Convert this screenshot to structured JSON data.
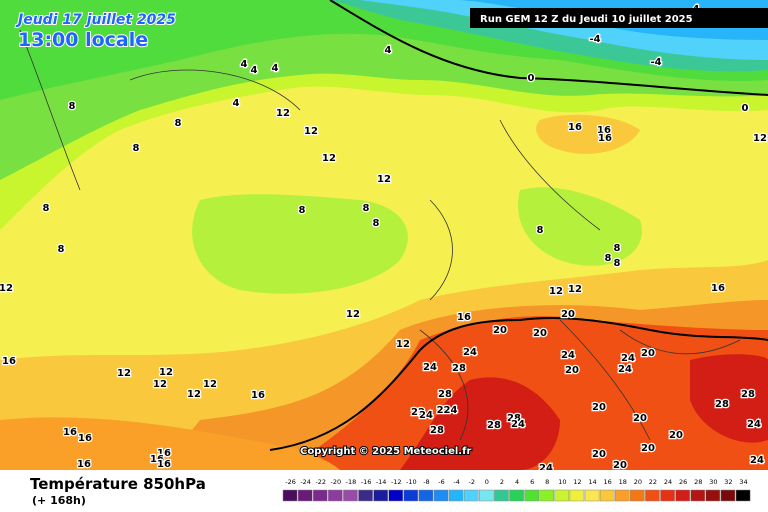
{
  "header": {
    "date": "Jeudi 17 juillet 2025",
    "time": "13:00 locale",
    "run": "Run GEM 12 Z du Jeudi 10 juillet 2025",
    "copyright": "Copyright © 2025 Meteociel.fr"
  },
  "footer": {
    "title": "Température 850hPa",
    "lead": "(+ 168h)"
  },
  "contour_labels": [
    "0",
    "-4",
    "-4",
    "4",
    "0",
    "4",
    "4",
    "4",
    "4",
    "4",
    "8",
    "8",
    "8",
    "12",
    "12",
    "12",
    "12",
    "16",
    "16",
    "16",
    "12",
    "8",
    "8",
    "8",
    "8",
    "8",
    "8",
    "8",
    "8",
    "8",
    "12",
    "12",
    "12",
    "16",
    "12",
    "16",
    "20",
    "20",
    "20",
    "12",
    "24",
    "24",
    "20",
    "24",
    "20",
    "24",
    "28",
    "24",
    "16",
    "12",
    "12",
    "12",
    "12",
    "12",
    "16",
    "28",
    "22",
    "24",
    "224",
    "28",
    "24",
    "20",
    "20",
    "28",
    "28",
    "24",
    "28",
    "28",
    "20",
    "20",
    "20",
    "20",
    "24",
    "24",
    "16",
    "16",
    "16",
    "16",
    "16",
    "16"
  ],
  "scale": {
    "labels": [
      -26,
      -24,
      -22,
      -20,
      -18,
      -16,
      -14,
      -12,
      -10,
      -8,
      -6,
      -4,
      -2,
      0,
      2,
      4,
      6,
      8,
      10,
      12,
      14,
      16,
      18,
      20,
      22,
      24,
      26,
      28,
      30,
      32,
      34
    ],
    "colors": [
      "#4b0d5c",
      "#6a1b7a",
      "#7a2a8c",
      "#8c3c9c",
      "#9a4aa8",
      "#3a2a8a",
      "#1c1c9c",
      "#0000c8",
      "#0a3cd8",
      "#1464e6",
      "#1e8cf0",
      "#28b4f8",
      "#50d2fa",
      "#78e6f0",
      "#32c896",
      "#28d25a",
      "#50e132",
      "#8cf028",
      "#c8f52d",
      "#f0f03c",
      "#fae650",
      "#fac83c",
      "#faa028",
      "#f57814",
      "#f05014",
      "#e63214",
      "#d21e14",
      "#b41414",
      "#960f0f",
      "#780a0a",
      "#000000"
    ]
  }
}
